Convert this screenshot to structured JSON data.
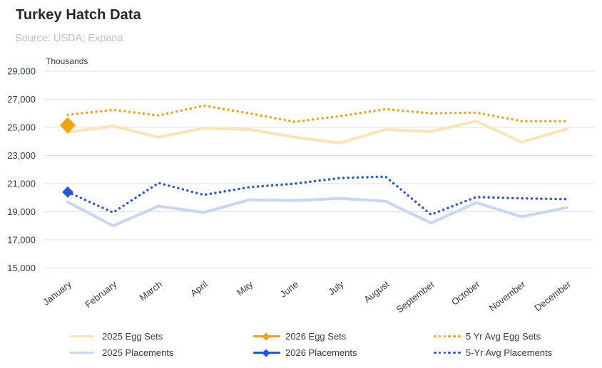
{
  "header": {
    "title": "Turkey Hatch Data",
    "source": "Source: USDA; Expana"
  },
  "chart_data": {
    "type": "line",
    "title": "Turkey Hatch Data",
    "ylabel": "Thousands",
    "xlabel": "",
    "ylim": [
      15000,
      29000
    ],
    "ytick_step": 2000,
    "ytick_values": [
      29000,
      27000,
      25000,
      23000,
      21000,
      19000,
      17000,
      15000
    ],
    "ytick_labels": [
      "29,000",
      "27,000",
      "25,000",
      "23,000",
      "21,000",
      "19,000",
      "17,000",
      "15,000"
    ],
    "grid": true,
    "legend_position": "bottom",
    "categories": [
      "January",
      "February",
      "March",
      "April",
      "May",
      "June",
      "July",
      "August",
      "September",
      "October",
      "November",
      "December"
    ],
    "series": [
      {
        "name": "2025 Egg Sets",
        "style": "solid",
        "color": "#FAE4B5",
        "values": [
          24650,
          25100,
          24300,
          24950,
          24850,
          24300,
          23900,
          24850,
          24700,
          25450,
          23950,
          24900
        ]
      },
      {
        "name": "2025 Placements",
        "style": "solid",
        "color": "#C8D6F2",
        "values": [
          19700,
          18000,
          19400,
          18950,
          19850,
          19800,
          19950,
          19750,
          18200,
          19650,
          18650,
          19300
        ]
      },
      {
        "name": "2026 Egg Sets",
        "style": "point",
        "marker": "diamond",
        "marker_size": 8,
        "color": "#F2A30D",
        "values": [
          25150,
          null,
          null,
          null,
          null,
          null,
          null,
          null,
          null,
          null,
          null,
          null
        ]
      },
      {
        "name": "2026 Placements",
        "style": "point",
        "marker": "diamond",
        "marker_size": 5.6,
        "color": "#2356D8",
        "values": [
          20400,
          null,
          null,
          null,
          null,
          null,
          null,
          null,
          null,
          null,
          null,
          null
        ]
      },
      {
        "name": "5 Yr Avg Egg Sets",
        "style": "dotted",
        "color": "#F2A30D",
        "values": [
          25900,
          26250,
          25850,
          26550,
          26000,
          25400,
          25800,
          26300,
          26000,
          26050,
          25450,
          25450
        ]
      },
      {
        "name": "5-Yr Avg Placements",
        "style": "dotted",
        "color": "#2356D8",
        "values": [
          20400,
          18950,
          21050,
          20200,
          20750,
          21000,
          21400,
          21500,
          18800,
          20050,
          19950,
          19900
        ]
      }
    ]
  },
  "legend": {
    "items": [
      {
        "label": "2025 Egg Sets",
        "swatch": "solid",
        "color": "#FAE4B5"
      },
      {
        "label": "2025 Placements",
        "swatch": "solid",
        "color": "#C8D6F2"
      },
      {
        "label": "2026 Egg Sets",
        "swatch": "line-diamond",
        "color": "#F2A30D"
      },
      {
        "label": "2026 Placements",
        "swatch": "line-diamond",
        "color": "#2356D8"
      },
      {
        "label": "5 Yr Avg Egg Sets",
        "swatch": "dotted",
        "color": "#F2A30D"
      },
      {
        "label": "5-Yr Avg Placements",
        "swatch": "dotted",
        "color": "#2356D8"
      }
    ]
  },
  "colors": {
    "accent_orange": "#F2A30D",
    "accent_blue": "#2356D8",
    "light_cream": "#FAE4B5",
    "light_blue": "#C8D6F2",
    "gridline": "#E1E1E1",
    "axis_text": "#2E3F39",
    "title_text": "#1D2B26",
    "source_text": "#BDC1C0"
  }
}
